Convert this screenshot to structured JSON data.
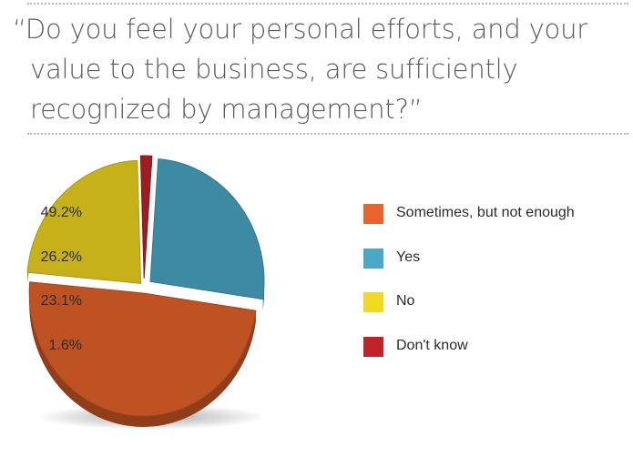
{
  "question": {
    "lines": [
      "“Do you feel your personal efforts, and your",
      "value to the business, are sufficiently",
      "recognized by management?”"
    ]
  },
  "chart_data": {
    "type": "pie",
    "title": "“Do you feel your personal efforts, and your value to the business, are sufficiently recognized by management?”",
    "legend_position": "right",
    "slices": [
      {
        "label": "Sometimes, but not enough",
        "value": 49.2,
        "display": "49.2%",
        "color": "#e8642a"
      },
      {
        "label": "Yes",
        "value": 26.2,
        "display": "26.2%",
        "color": "#4aa8c7"
      },
      {
        "label": "No",
        "value": 23.1,
        "display": "23.1%",
        "color": "#f2d81f"
      },
      {
        "label": "Don't know",
        "value": 1.6,
        "display": "1.6%",
        "color": "#c0232a"
      }
    ]
  }
}
